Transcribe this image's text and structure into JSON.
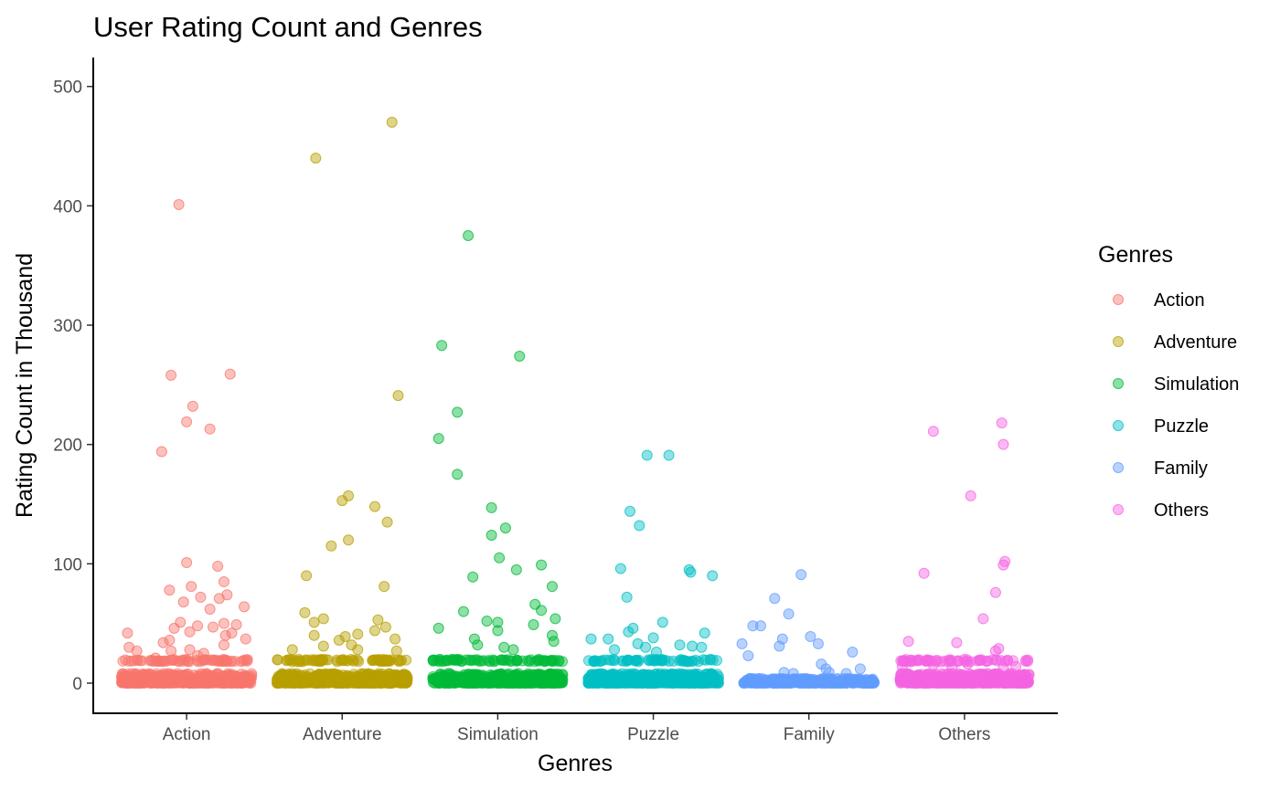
{
  "chart_data": {
    "type": "scatter",
    "subtype": "jitter-strip",
    "title": "User Rating Count and Genres",
    "xlabel": "Genres",
    "ylabel": "Rating Count in Thousand",
    "categories": [
      "Action",
      "Adventure",
      "Simulation",
      "Puzzle",
      "Family",
      "Others"
    ],
    "yticks": [
      0,
      100,
      200,
      300,
      400,
      500
    ],
    "ylim": [
      -25,
      525
    ],
    "grid": false,
    "legend": {
      "title": "Genres",
      "position": "right"
    },
    "series": [
      {
        "name": "Action",
        "color": "#F8766D",
        "points": [
          {
            "dx": -0.05,
            "y": 401
          },
          {
            "dx": -0.1,
            "y": 258
          },
          {
            "dx": 0.28,
            "y": 259
          },
          {
            "dx": 0.04,
            "y": 232
          },
          {
            "dx": 0.0,
            "y": 219
          },
          {
            "dx": 0.15,
            "y": 213
          },
          {
            "dx": -0.16,
            "y": 194
          },
          {
            "dx": 0.0,
            "y": 101
          },
          {
            "dx": 0.2,
            "y": 98
          },
          {
            "dx": 0.24,
            "y": 85
          },
          {
            "dx": 0.03,
            "y": 81
          },
          {
            "dx": -0.11,
            "y": 78
          },
          {
            "dx": 0.26,
            "y": 74
          },
          {
            "dx": 0.09,
            "y": 72
          },
          {
            "dx": 0.21,
            "y": 71
          },
          {
            "dx": -0.02,
            "y": 68
          },
          {
            "dx": 0.37,
            "y": 64
          },
          {
            "dx": 0.15,
            "y": 62
          },
          {
            "dx": -0.04,
            "y": 51
          },
          {
            "dx": 0.24,
            "y": 50
          },
          {
            "dx": 0.32,
            "y": 49
          },
          {
            "dx": 0.07,
            "y": 48
          },
          {
            "dx": 0.17,
            "y": 47
          },
          {
            "dx": -0.08,
            "y": 46
          },
          {
            "dx": 0.02,
            "y": 43
          },
          {
            "dx": 0.29,
            "y": 42
          },
          {
            "dx": -0.38,
            "y": 42
          },
          {
            "dx": 0.25,
            "y": 40
          },
          {
            "dx": 0.38,
            "y": 37
          },
          {
            "dx": -0.11,
            "y": 36
          },
          {
            "dx": -0.15,
            "y": 34
          },
          {
            "dx": 0.24,
            "y": 32
          },
          {
            "dx": -0.37,
            "y": 30
          },
          {
            "dx": 0.02,
            "y": 28
          },
          {
            "dx": -0.1,
            "y": 27
          },
          {
            "dx": -0.32,
            "y": 27
          },
          {
            "dx": 0.11,
            "y": 25
          },
          {
            "dx": 0.07,
            "y": 23
          },
          {
            "dx": -0.2,
            "y": 21
          }
        ]
      },
      {
        "name": "Adventure",
        "color": "#B79F00",
        "points": [
          {
            "dx": 0.32,
            "y": 470
          },
          {
            "dx": -0.17,
            "y": 440
          },
          {
            "dx": 0.36,
            "y": 241
          },
          {
            "dx": 0.04,
            "y": 157
          },
          {
            "dx": 0.0,
            "y": 153
          },
          {
            "dx": 0.21,
            "y": 148
          },
          {
            "dx": 0.29,
            "y": 135
          },
          {
            "dx": 0.04,
            "y": 120
          },
          {
            "dx": -0.07,
            "y": 115
          },
          {
            "dx": -0.23,
            "y": 90
          },
          {
            "dx": 0.27,
            "y": 81
          },
          {
            "dx": -0.24,
            "y": 59
          },
          {
            "dx": -0.12,
            "y": 54
          },
          {
            "dx": 0.23,
            "y": 53
          },
          {
            "dx": -0.18,
            "y": 51
          },
          {
            "dx": 0.28,
            "y": 47
          },
          {
            "dx": 0.21,
            "y": 44
          },
          {
            "dx": 0.1,
            "y": 41
          },
          {
            "dx": -0.18,
            "y": 40
          },
          {
            "dx": 0.02,
            "y": 39
          },
          {
            "dx": -0.02,
            "y": 36
          },
          {
            "dx": 0.34,
            "y": 37
          },
          {
            "dx": 0.06,
            "y": 32
          },
          {
            "dx": -0.12,
            "y": 31
          },
          {
            "dx": 0.1,
            "y": 28
          },
          {
            "dx": -0.32,
            "y": 28
          },
          {
            "dx": 0.35,
            "y": 27
          }
        ]
      },
      {
        "name": "Simulation",
        "color": "#00BA38",
        "points": [
          {
            "dx": -0.19,
            "y": 375
          },
          {
            "dx": -0.36,
            "y": 283
          },
          {
            "dx": 0.14,
            "y": 274
          },
          {
            "dx": -0.26,
            "y": 227
          },
          {
            "dx": -0.38,
            "y": 205
          },
          {
            "dx": -0.26,
            "y": 175
          },
          {
            "dx": -0.04,
            "y": 147
          },
          {
            "dx": 0.05,
            "y": 130
          },
          {
            "dx": -0.04,
            "y": 124
          },
          {
            "dx": 0.01,
            "y": 105
          },
          {
            "dx": 0.28,
            "y": 99
          },
          {
            "dx": 0.12,
            "y": 95
          },
          {
            "dx": -0.16,
            "y": 89
          },
          {
            "dx": 0.35,
            "y": 81
          },
          {
            "dx": 0.24,
            "y": 66
          },
          {
            "dx": 0.28,
            "y": 61
          },
          {
            "dx": -0.22,
            "y": 60
          },
          {
            "dx": 0.37,
            "y": 54
          },
          {
            "dx": -0.07,
            "y": 52
          },
          {
            "dx": 0.0,
            "y": 51
          },
          {
            "dx": 0.23,
            "y": 49
          },
          {
            "dx": -0.38,
            "y": 46
          },
          {
            "dx": 0.0,
            "y": 44
          },
          {
            "dx": 0.35,
            "y": 40
          },
          {
            "dx": -0.15,
            "y": 37
          },
          {
            "dx": 0.36,
            "y": 35
          },
          {
            "dx": -0.13,
            "y": 32
          },
          {
            "dx": 0.04,
            "y": 30
          },
          {
            "dx": 0.1,
            "y": 28
          }
        ]
      },
      {
        "name": "Puzzle",
        "color": "#00BFC4",
        "points": [
          {
            "dx": -0.04,
            "y": 191
          },
          {
            "dx": 0.1,
            "y": 191
          },
          {
            "dx": -0.15,
            "y": 144
          },
          {
            "dx": -0.09,
            "y": 132
          },
          {
            "dx": -0.21,
            "y": 96
          },
          {
            "dx": 0.23,
            "y": 95
          },
          {
            "dx": 0.24,
            "y": 93
          },
          {
            "dx": 0.38,
            "y": 90
          },
          {
            "dx": -0.17,
            "y": 72
          },
          {
            "dx": 0.06,
            "y": 51
          },
          {
            "dx": -0.13,
            "y": 46
          },
          {
            "dx": -0.16,
            "y": 43
          },
          {
            "dx": 0.33,
            "y": 42
          },
          {
            "dx": 0.0,
            "y": 38
          },
          {
            "dx": -0.29,
            "y": 37
          },
          {
            "dx": -0.4,
            "y": 37
          },
          {
            "dx": -0.1,
            "y": 33
          },
          {
            "dx": 0.17,
            "y": 32
          },
          {
            "dx": 0.25,
            "y": 31
          },
          {
            "dx": 0.31,
            "y": 30
          },
          {
            "dx": -0.05,
            "y": 30
          },
          {
            "dx": -0.25,
            "y": 28
          },
          {
            "dx": 0.02,
            "y": 26
          }
        ]
      },
      {
        "name": "Family",
        "color": "#619CFF",
        "points": [
          {
            "dx": -0.05,
            "y": 91
          },
          {
            "dx": -0.22,
            "y": 71
          },
          {
            "dx": -0.13,
            "y": 58
          },
          {
            "dx": -0.36,
            "y": 48
          },
          {
            "dx": -0.31,
            "y": 48
          },
          {
            "dx": 0.01,
            "y": 39
          },
          {
            "dx": -0.17,
            "y": 37
          },
          {
            "dx": 0.06,
            "y": 33
          },
          {
            "dx": -0.43,
            "y": 33
          },
          {
            "dx": -0.19,
            "y": 31
          },
          {
            "dx": 0.28,
            "y": 26
          },
          {
            "dx": -0.39,
            "y": 23
          },
          {
            "dx": 0.08,
            "y": 16
          },
          {
            "dx": 0.11,
            "y": 12
          },
          {
            "dx": 0.33,
            "y": 12
          },
          {
            "dx": 0.13,
            "y": 9
          },
          {
            "dx": -0.16,
            "y": 9
          },
          {
            "dx": -0.1,
            "y": 8
          },
          {
            "dx": 0.24,
            "y": 8
          }
        ]
      },
      {
        "name": "Others",
        "color": "#F564E3",
        "points": [
          {
            "dx": 0.24,
            "y": 218
          },
          {
            "dx": -0.2,
            "y": 211
          },
          {
            "dx": 0.25,
            "y": 200
          },
          {
            "dx": 0.04,
            "y": 157
          },
          {
            "dx": 0.26,
            "y": 102
          },
          {
            "dx": 0.25,
            "y": 99
          },
          {
            "dx": -0.26,
            "y": 92
          },
          {
            "dx": 0.2,
            "y": 76
          },
          {
            "dx": 0.12,
            "y": 54
          },
          {
            "dx": -0.36,
            "y": 35
          },
          {
            "dx": -0.05,
            "y": 34
          },
          {
            "dx": 0.22,
            "y": 29
          },
          {
            "dx": 0.2,
            "y": 27
          },
          {
            "dx": -0.37,
            "y": 18
          },
          {
            "dx": -0.15,
            "y": 18
          },
          {
            "dx": 0.1,
            "y": 19
          },
          {
            "dx": 0.02,
            "y": 16
          },
          {
            "dx": 0.33,
            "y": 14
          },
          {
            "dx": -0.4,
            "y": 14
          },
          {
            "dx": -0.2,
            "y": 15
          },
          {
            "dx": 0.25,
            "y": 13
          },
          {
            "dx": -0.08,
            "y": 13
          }
        ]
      }
    ]
  }
}
